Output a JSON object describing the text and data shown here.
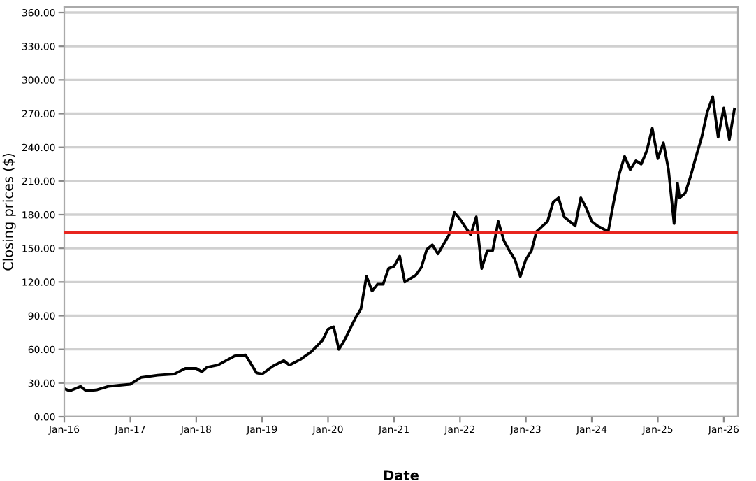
{
  "chart_data": {
    "type": "line",
    "xlabel": "Date",
    "ylabel": "Closing prices ($)",
    "x": [
      "2016-01",
      "2016-02",
      "2016-04",
      "2016-05",
      "2016-07",
      "2016-09",
      "2016-11",
      "2017-01",
      "2017-03",
      "2017-06",
      "2017-09",
      "2017-11",
      "2018-01",
      "2018-02",
      "2018-03",
      "2018-05",
      "2018-08",
      "2018-10",
      "2018-12",
      "2019-01",
      "2019-03",
      "2019-05",
      "2019-06",
      "2019-08",
      "2019-10",
      "2019-12",
      "2020-01",
      "2020-02",
      "2020-03",
      "2020-04",
      "2020-06",
      "2020-07",
      "2020-08",
      "2020-09",
      "2020-10",
      "2020-11",
      "2020-12",
      "2021-01",
      "2021-02",
      "2021-03",
      "2021-05",
      "2021-06",
      "2021-07",
      "2021-08",
      "2021-09",
      "2021-11",
      "2021-12",
      "2022-01",
      "2022-03",
      "2022-04",
      "2022-05",
      "2022-06",
      "2022-07",
      "2022-08",
      "2022-09",
      "2022-10",
      "2022-11",
      "2022-12",
      "2023-01",
      "2023-02",
      "2023-03",
      "2023-05",
      "2023-06",
      "2023-07",
      "2023-08",
      "2023-09",
      "2023-10",
      "2023-11",
      "2023-12",
      "2024-01",
      "2024-02",
      "2024-04",
      "2024-05",
      "2024-06",
      "2024-07",
      "2024-08",
      "2024-09",
      "2024-10",
      "2024-11",
      "2024-12",
      "2025-01",
      "2025-02",
      "2025-03",
      "2025-04",
      "2025-04-20",
      "2025-05",
      "2025-06",
      "2025-07",
      "2025-08",
      "2025-09",
      "2025-10",
      "2025-11",
      "2025-12",
      "2026-01",
      "2026-02",
      "2026-03"
    ],
    "series": [
      {
        "color": "#000000",
        "values": [
          25,
          23,
          27,
          23,
          24,
          27,
          28,
          29,
          35,
          37,
          38,
          43,
          43,
          40,
          44,
          46,
          54,
          55,
          39,
          38,
          45,
          50,
          46,
          51,
          58,
          68,
          78,
          80,
          60,
          68,
          88,
          96,
          125,
          112,
          118,
          118,
          132,
          134,
          143,
          120,
          126,
          133,
          149,
          153,
          145,
          162,
          182,
          176,
          162,
          178,
          132,
          148,
          148,
          174,
          157,
          148,
          140,
          125,
          140,
          148,
          165,
          174,
          191,
          195,
          178,
          174,
          170,
          195,
          186,
          174,
          170,
          165,
          191,
          216,
          232,
          220,
          228,
          225,
          237,
          257,
          230,
          244,
          220,
          172,
          208,
          195,
          199,
          214,
          232,
          249,
          271,
          285,
          249,
          275,
          247,
          274
        ]
      }
    ],
    "xlim": [
      "2016-01-01",
      "2026-03-20"
    ],
    "xticks": [
      {
        "value": "2016-01-01",
        "label": "Jan-16"
      },
      {
        "value": "2017-01-01",
        "label": "Jan-17"
      },
      {
        "value": "2018-01-01",
        "label": "Jan-18"
      },
      {
        "value": "2019-01-01",
        "label": "Jan-19"
      },
      {
        "value": "2020-01-01",
        "label": "Jan-20"
      },
      {
        "value": "2021-01-01",
        "label": "Jan-21"
      },
      {
        "value": "2022-01-01",
        "label": "Jan-22"
      },
      {
        "value": "2023-01-01",
        "label": "Jan-23"
      },
      {
        "value": "2024-01-01",
        "label": "Jan-24"
      },
      {
        "value": "2025-01-01",
        "label": "Jan-25"
      },
      {
        "value": "2026-01-01",
        "label": "Jan-26"
      }
    ],
    "ylim": [
      0,
      365
    ],
    "yticks": [
      {
        "value": 0,
        "label": "0.00"
      },
      {
        "value": 30,
        "label": "30.00"
      },
      {
        "value": 60,
        "label": "60.00"
      },
      {
        "value": 90,
        "label": "90.00"
      },
      {
        "value": 120,
        "label": "120.00"
      },
      {
        "value": 150,
        "label": "150.00"
      },
      {
        "value": 180,
        "label": "180.00"
      },
      {
        "value": 210,
        "label": "210.00"
      },
      {
        "value": 240,
        "label": "240.00"
      },
      {
        "value": 270,
        "label": "270.00"
      },
      {
        "value": 300,
        "label": "300.00"
      },
      {
        "value": 330,
        "label": "330.00"
      },
      {
        "value": 360,
        "label": "360.00"
      }
    ],
    "ref_lines": [
      {
        "axis": "y",
        "value": 164,
        "color": "#e8251f"
      }
    ],
    "grid": "y",
    "marker": "none",
    "line_style": "solid"
  }
}
